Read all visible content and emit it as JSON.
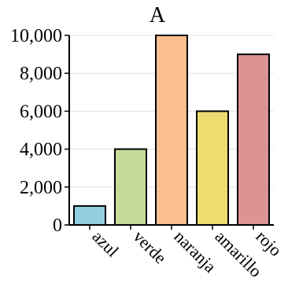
{
  "chart_data": {
    "type": "bar",
    "title": "A",
    "xlabel": "",
    "ylabel": "",
    "categories": [
      "azul",
      "verde",
      "naranja",
      "amarillo",
      "rojo"
    ],
    "values": [
      1000,
      4000,
      10000,
      6000,
      9000
    ],
    "colors": [
      "#91cfe0",
      "#c5da9a",
      "#fbbf8f",
      "#eedc71",
      "#db9393"
    ],
    "ylim": [
      0,
      10000
    ],
    "yticks": [
      0,
      2000,
      4000,
      6000,
      8000,
      10000
    ],
    "ytick_labels": [
      "0",
      "2,000",
      "4,000",
      "6,000",
      "8,000",
      "10,000"
    ],
    "grid": true,
    "legend": "none"
  }
}
